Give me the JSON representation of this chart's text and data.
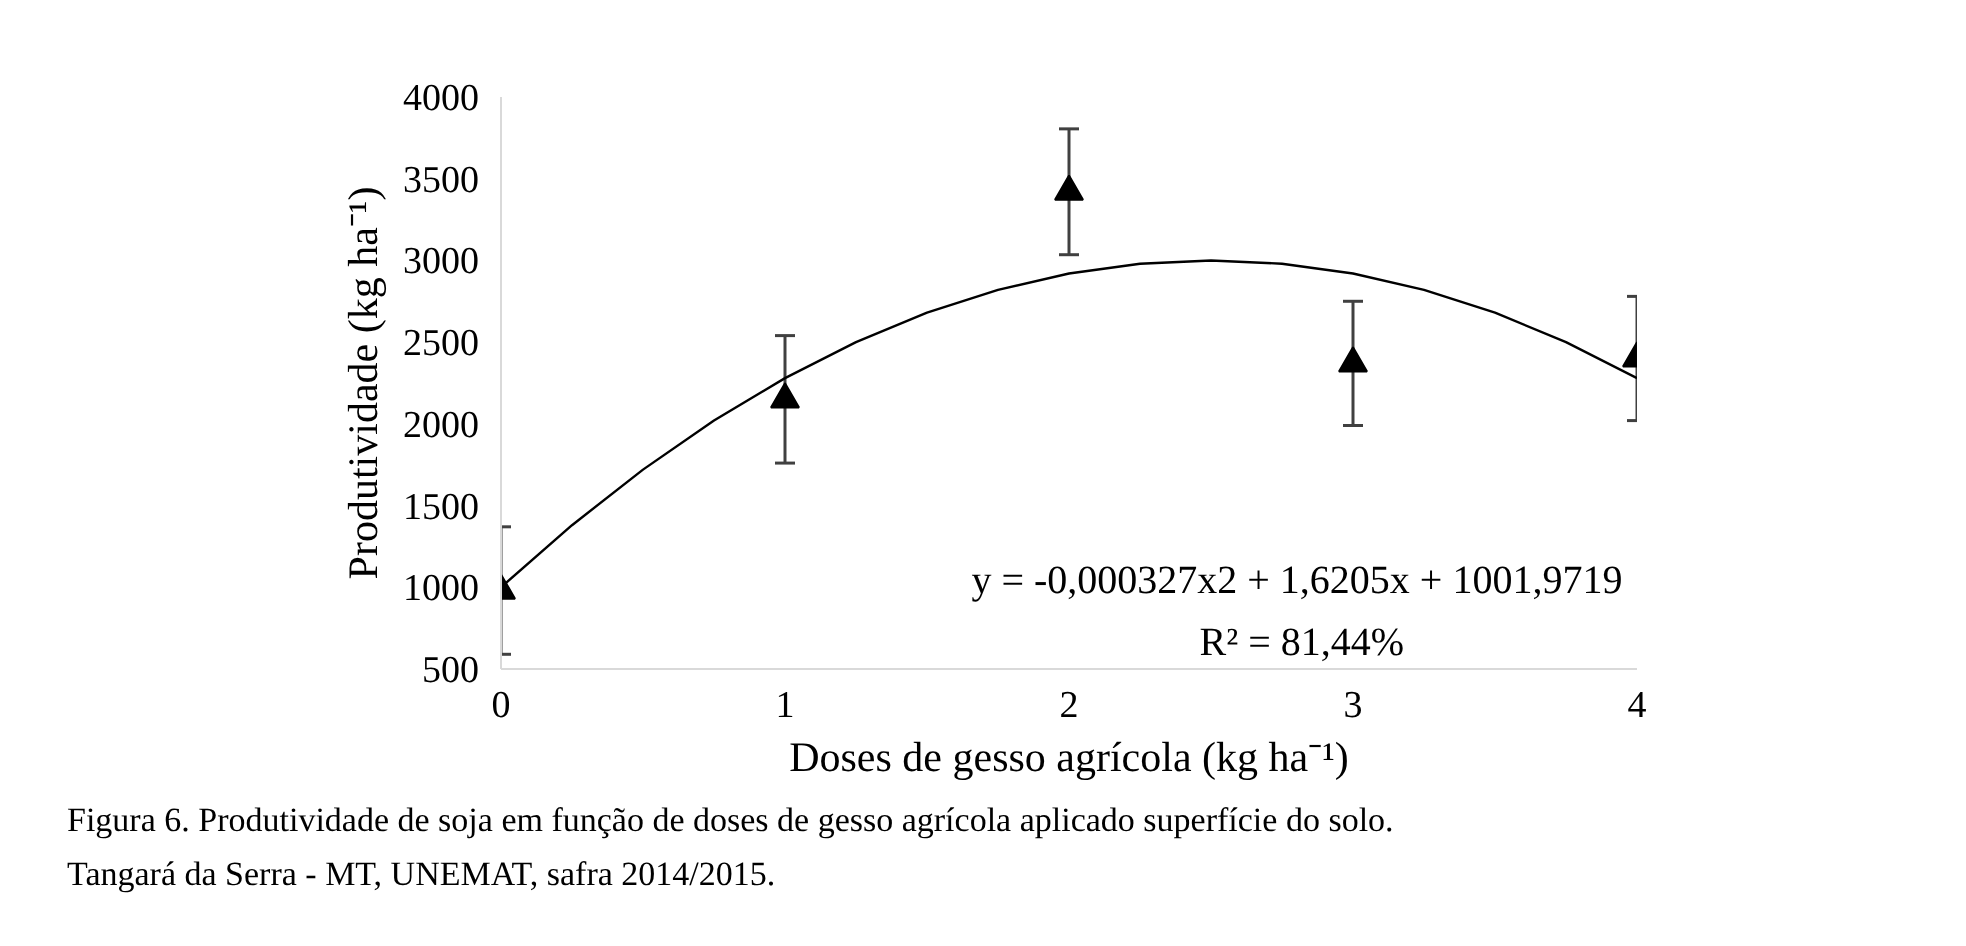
{
  "chart_data": {
    "type": "scatter",
    "xlabel": "Doses de gesso agrícola (kg ha⁻¹)",
    "ylabel": "Produtividade (kg ha⁻¹)",
    "x": [
      0,
      1,
      2,
      3,
      4
    ],
    "xlim": [
      0,
      4
    ],
    "xticks": [
      0,
      1,
      2,
      3,
      4
    ],
    "ylim": [
      500,
      4000
    ],
    "yticks": [
      500,
      1000,
      1500,
      2000,
      2500,
      3000,
      3500,
      4000
    ],
    "grid": false,
    "series": [
      {
        "marker": "triangle",
        "color": "#000000",
        "values": [
          980,
          2150,
          3420,
          2370,
          2400
        ],
        "errors": [
          390,
          390,
          385,
          380,
          380
        ]
      },
      {
        "type": "line",
        "color": "#000000",
        "x": [
          0,
          0.25,
          0.5,
          0.75,
          1,
          1.25,
          1.5,
          1.75,
          2,
          2.25,
          2.5,
          2.75,
          3,
          3.25,
          3.5,
          3.75,
          4
        ],
        "values": [
          1000,
          1380,
          1720,
          2020,
          2280,
          2500,
          2680,
          2820,
          2920,
          2980,
          3000,
          2980,
          2920,
          2820,
          2680,
          2500,
          2280
        ]
      }
    ],
    "annotations": [
      "y = -0,000327x2  + 1,6205x + 1001,9719",
      "R² = 81,44%",
      "Figura 6. Produtividade de soja em função de doses de gesso agrícola aplicado superfície do solo.",
      "Tangará da Serra - MT, UNEMAT, safra 2014/2015."
    ]
  }
}
